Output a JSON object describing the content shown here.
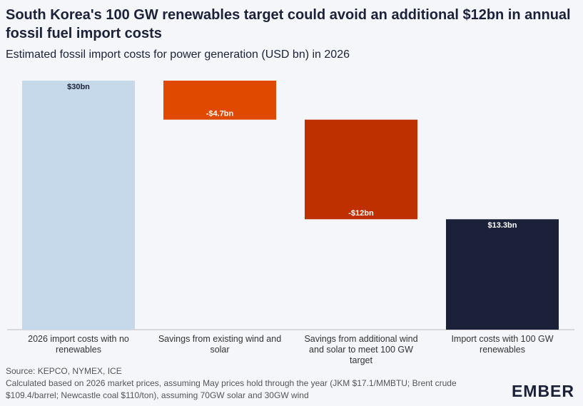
{
  "chart_data": {
    "type": "waterfall",
    "title": "South Korea's 100 GW renewables target could avoid an additional $12bn in annual fossil fuel import costs",
    "subtitle": "Estimated fossil import costs for power generation (USD bn) in 2026",
    "categories": [
      "2026 import costs with no renewables",
      "Savings from existing wind and solar",
      "Savings from additional wind and solar to meet 100 GW target",
      "Import costs with 100 GW renewables"
    ],
    "values": [
      30,
      -4.7,
      -12,
      13.3
    ],
    "value_labels": [
      "$30bn",
      "-$4.7bn",
      "-$12bn",
      "$13.3bn"
    ],
    "measure": [
      "absolute",
      "relative",
      "relative",
      "total"
    ],
    "colors": [
      "#c5d9ea",
      "#e04a00",
      "#bf3000",
      "#1b2138"
    ],
    "label_colors": [
      "#1b2138",
      "#ffffff",
      "#ffffff",
      "#ffffff"
    ],
    "source": "Source: KEPCO, NYMEX, ICE",
    "note": "Calculated based on 2026 market prices, assuming May prices hold through the year (JKM $17.1/MMBTU; Brent crude $109.4/barrel; Newcastle coal $110/ton), assuming 70GW solar and 30GW wind",
    "logo": "EMBER"
  }
}
